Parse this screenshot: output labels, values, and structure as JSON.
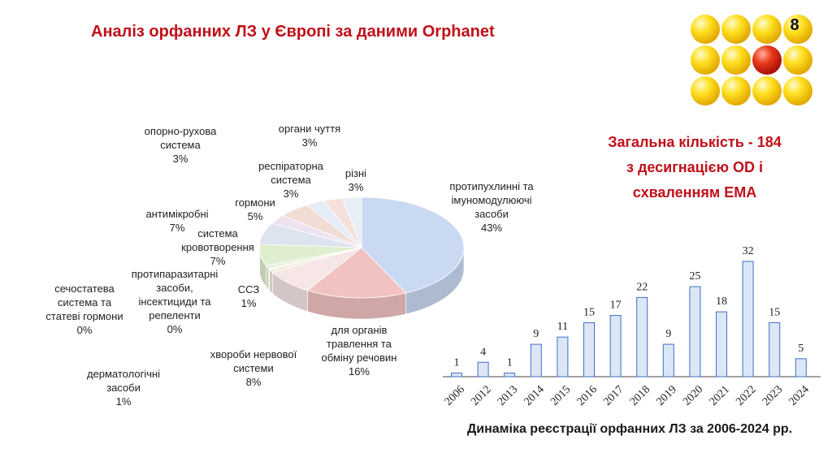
{
  "title": "Аналіз орфанних ЛЗ у Європі за даними Orphanet",
  "slide_number": "8",
  "summary": {
    "line1": "Загальна кількість  - 184",
    "line2": "з десигнацією OD і",
    "line3": "схваленням EMA"
  },
  "bar_caption": "Динаміка реєстрації орфанних ЛЗ  за 2006-2024 рр.",
  "colors": {
    "accent": "#c0101a",
    "bar_fill": "#dbe6f7",
    "bar_stroke": "#3f6fc4"
  },
  "chart_data": [
    {
      "type": "pie",
      "slices": [
        {
          "label_lines": [
            "протипухлинні та",
            "імуномодулюючі",
            "засоби"
          ],
          "pct": "43%",
          "value": 43,
          "color": "#c9d9f2"
        },
        {
          "label_lines": [
            "для органів",
            "травлення та",
            "обміну речовин"
          ],
          "pct": "16%",
          "value": 16,
          "color": "#f2c2c2"
        },
        {
          "label_lines": [
            "хвороби нервової",
            "системи"
          ],
          "pct": "8%",
          "value": 8,
          "color": "#f7e6e6"
        },
        {
          "label_lines": [
            "дерматологічні",
            "засоби"
          ],
          "pct": "1%",
          "value": 1,
          "color": "#f5ecd8"
        },
        {
          "label_lines": [
            "сечостатева",
            "система та",
            "статеві гормони"
          ],
          "pct": "0%",
          "value": 0,
          "color": "#e8e8e8"
        },
        {
          "label_lines": [
            "протипаразитарні",
            "засоби,",
            "інсектициди та",
            "репеленти"
          ],
          "pct": "0%",
          "value": 0,
          "color": "#eeeeee"
        },
        {
          "label_lines": [
            "ССЗ"
          ],
          "pct": "1%",
          "value": 1,
          "color": "#e8f0d8"
        },
        {
          "label_lines": [
            "система",
            "кровотворення"
          ],
          "pct": "7%",
          "value": 7,
          "color": "#dfeecf"
        },
        {
          "label_lines": [
            "антимікробні"
          ],
          "pct": "7%",
          "value": 7,
          "color": "#dde3ef"
        },
        {
          "label_lines": [
            "опорно-рухова",
            "система"
          ],
          "pct": "3%",
          "value": 3,
          "color": "#eee2ee"
        },
        {
          "label_lines": [
            "гормони"
          ],
          "pct": "5%",
          "value": 5,
          "color": "#f1ddd6"
        },
        {
          "label_lines": [
            "респіраторна",
            "система"
          ],
          "pct": "3%",
          "value": 3,
          "color": "#e4ecf6"
        },
        {
          "label_lines": [
            "органи чуття"
          ],
          "pct": "3%",
          "value": 3,
          "color": "#f6e0dc"
        },
        {
          "label_lines": [
            "різні"
          ],
          "pct": "3%",
          "value": 3,
          "color": "#e9eef6"
        }
      ]
    },
    {
      "type": "bar",
      "categories": [
        "2006",
        "2012",
        "2013",
        "2014",
        "2015",
        "2016",
        "2017",
        "2018",
        "2019",
        "2020",
        "2021",
        "2022",
        "2023",
        "2024"
      ],
      "values": [
        1,
        4,
        1,
        9,
        11,
        15,
        17,
        22,
        9,
        25,
        18,
        32,
        15,
        5
      ]
    }
  ]
}
